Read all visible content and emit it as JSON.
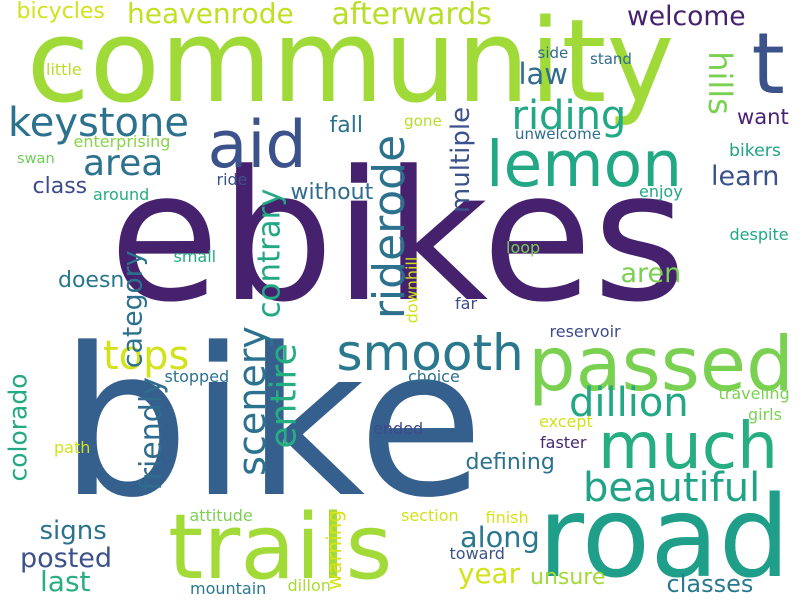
{
  "words": [
    {
      "text": "ebikes",
      "color": "#45216e"
    },
    {
      "text": "bike",
      "color": "#355f8d"
    },
    {
      "text": "community",
      "color": "#a0da39"
    },
    {
      "text": "road",
      "color": "#1f9e89"
    },
    {
      "text": "trails",
      "color": "#a2da37"
    },
    {
      "text": "passed",
      "color": "#7ad151"
    },
    {
      "text": "much",
      "color": "#26ad81"
    },
    {
      "text": "lemon",
      "color": "#22a884"
    },
    {
      "text": "aid",
      "color": "#3b528b"
    },
    {
      "text": "t",
      "color": "#3b528b"
    },
    {
      "text": "smooth",
      "color": "#2a788e"
    },
    {
      "text": "beautiful",
      "color": "#20a386"
    },
    {
      "text": "keystone",
      "color": "#2c728e"
    },
    {
      "text": "area",
      "color": "#2c728e"
    },
    {
      "text": "riding",
      "color": "#22a884"
    },
    {
      "text": "dillion",
      "color": "#22a884"
    },
    {
      "text": "riderode",
      "color": "#2c728e"
    },
    {
      "text": "scenery",
      "color": "#2c728e"
    },
    {
      "text": "entire",
      "color": "#26ad81"
    },
    {
      "text": "tops",
      "color": "#d2e21b"
    },
    {
      "text": "hills",
      "color": "#7ad151"
    },
    {
      "text": "contrary",
      "color": "#22a884"
    },
    {
      "text": "heavenrode",
      "color": "#c2df23"
    },
    {
      "text": "afterwards",
      "color": "#b8de29"
    },
    {
      "text": "welcome",
      "color": "#45216e"
    },
    {
      "text": "law",
      "color": "#2f6c8e"
    },
    {
      "text": "friendly",
      "color": "#2f6c8e"
    },
    {
      "text": "colorado",
      "color": "#23a983"
    },
    {
      "text": "along",
      "color": "#2a788e"
    },
    {
      "text": "signs",
      "color": "#2c728e"
    },
    {
      "text": "posted",
      "color": "#3b528b"
    },
    {
      "text": "last",
      "color": "#29af7f"
    },
    {
      "text": "year",
      "color": "#d2e21b"
    },
    {
      "text": "aren",
      "color": "#7ad151"
    },
    {
      "text": "learn",
      "color": "#3b528b"
    },
    {
      "text": "bikers",
      "color": "#20a386"
    },
    {
      "text": "want",
      "color": "#482374"
    },
    {
      "text": "unsure",
      "color": "#a2da37"
    },
    {
      "text": "classes",
      "color": "#2a788e"
    },
    {
      "text": "defining",
      "color": "#2c728e"
    },
    {
      "text": "without",
      "color": "#2f6c8e"
    },
    {
      "text": "fall",
      "color": "#2c728e"
    },
    {
      "text": "multiple",
      "color": "#3b528b"
    },
    {
      "text": "class",
      "color": "#3e4a89"
    },
    {
      "text": "doesn",
      "color": "#2a788e"
    },
    {
      "text": "category",
      "color": "#2c728e"
    },
    {
      "text": "bicycles",
      "color": "#d2e21b"
    },
    {
      "text": "warning",
      "color": "#d8e219"
    },
    {
      "text": "little",
      "color": "#b8de29"
    },
    {
      "text": "enterprising",
      "color": "#86d549"
    },
    {
      "text": "swan",
      "color": "#6ece58"
    },
    {
      "text": "around",
      "color": "#25ac82"
    },
    {
      "text": "ride",
      "color": "#3b528b"
    },
    {
      "text": "small",
      "color": "#25ab82"
    },
    {
      "text": "gone",
      "color": "#b5de2b"
    },
    {
      "text": "unwelcome",
      "color": "#2f6c8e"
    },
    {
      "text": "side",
      "color": "#2f6c8e"
    },
    {
      "text": "stand",
      "color": "#2f6c8e"
    },
    {
      "text": "enjoy",
      "color": "#22a884"
    },
    {
      "text": "despite",
      "color": "#22a884"
    },
    {
      "text": "loop",
      "color": "#75d054"
    },
    {
      "text": "downhill",
      "color": "#d2e21b"
    },
    {
      "text": "far",
      "color": "#3e4a89"
    },
    {
      "text": "reservoir",
      "color": "#3e4a89"
    },
    {
      "text": "choice",
      "color": "#2c728e"
    },
    {
      "text": "stopped",
      "color": "#2c728e"
    },
    {
      "text": "traveling",
      "color": "#7ad151"
    },
    {
      "text": "girls",
      "color": "#7ad151"
    },
    {
      "text": "except",
      "color": "#d2e21b"
    },
    {
      "text": "ended",
      "color": "#3e4a89"
    },
    {
      "text": "faster",
      "color": "#482878"
    },
    {
      "text": "path",
      "color": "#d2e21b"
    },
    {
      "text": "attitude",
      "color": "#7ad151"
    },
    {
      "text": "section",
      "color": "#d2e21b"
    },
    {
      "text": "finish",
      "color": "#d8e219"
    },
    {
      "text": "toward",
      "color": "#3b528b"
    },
    {
      "text": "mountain",
      "color": "#2a788e"
    },
    {
      "text": "dillon",
      "color": "#a8db34"
    }
  ]
}
